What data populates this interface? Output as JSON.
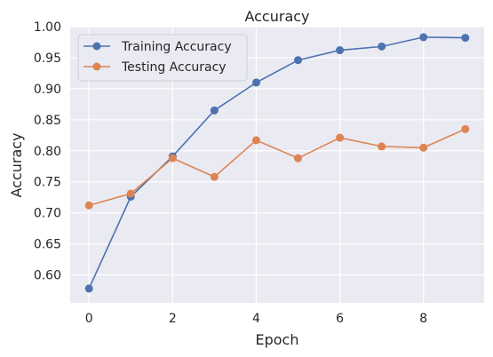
{
  "chart_data": {
    "type": "line",
    "title": "Accuracy",
    "xlabel": "Epoch",
    "ylabel": "Accuracy",
    "x": [
      0,
      1,
      2,
      3,
      4,
      5,
      6,
      7,
      8,
      9
    ],
    "xticks": [
      0,
      2,
      4,
      6,
      8
    ],
    "yticks": [
      0.6,
      0.65,
      0.7,
      0.75,
      0.8,
      0.85,
      0.9,
      0.95,
      1.0
    ],
    "xlim": [
      -0.45,
      9.45
    ],
    "ylim": [
      0.555,
      1.0
    ],
    "grid": true,
    "legend_position": "top-left",
    "series": [
      {
        "name": "Training Accuracy",
        "color": "#4c72b0",
        "values": [
          0.578,
          0.726,
          0.791,
          0.865,
          0.91,
          0.946,
          0.962,
          0.968,
          0.983,
          0.982
        ]
      },
      {
        "name": "Testing Accuracy",
        "color": "#dd8452",
        "values": [
          0.712,
          0.731,
          0.788,
          0.758,
          0.817,
          0.788,
          0.821,
          0.807,
          0.805,
          0.835
        ]
      }
    ]
  }
}
